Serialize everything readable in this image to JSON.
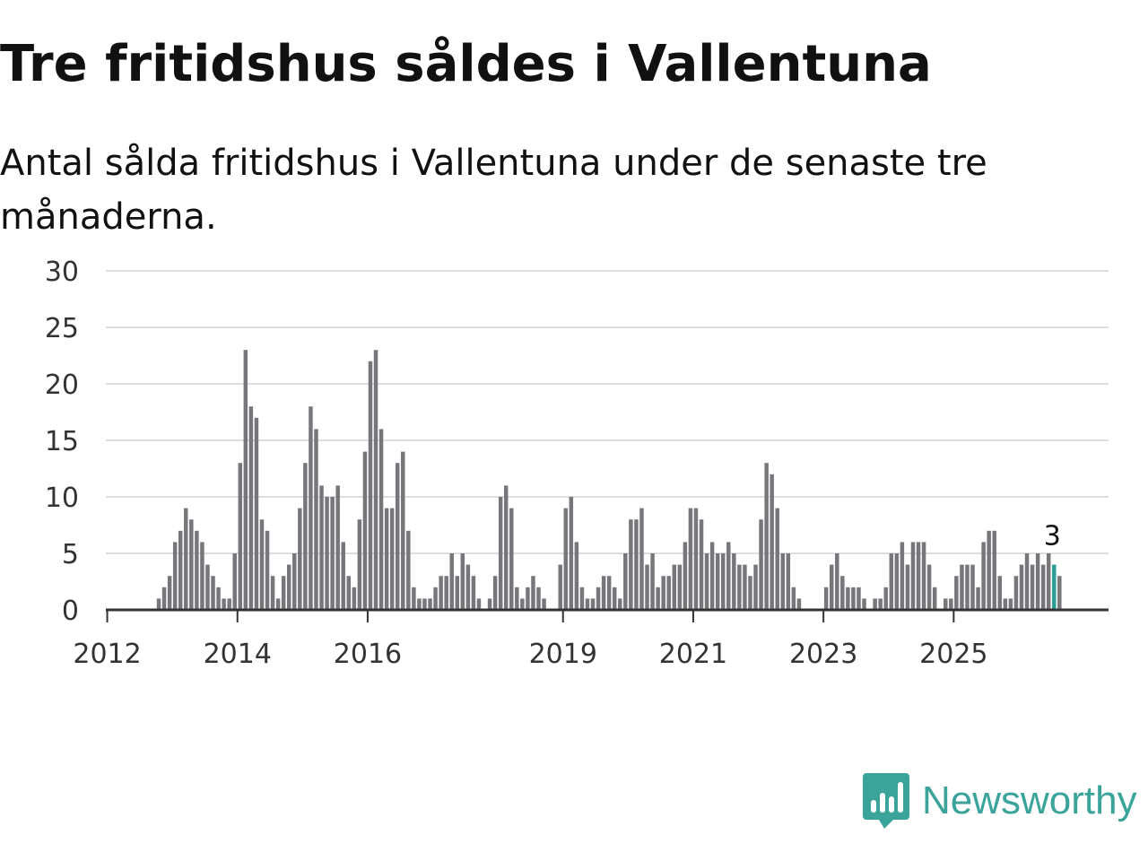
{
  "title": "Tre fritidshus såldes i Vallentuna",
  "subtitle": "Antal sålda fritidshus i Vallentuna under de senaste tre månaderna.",
  "brand": {
    "name": "Newsworthy",
    "color": "#3aa39a",
    "icon": "newsworthy-logo-icon"
  },
  "colors": {
    "bar": "#77767b",
    "highlight": "#2a9d95",
    "grid": "#dddddd",
    "axis": "#333333"
  },
  "chart_data": {
    "type": "bar",
    "title": "Tre fritidshus såldes i Vallentuna",
    "xlabel": "",
    "ylabel": "",
    "ylim": [
      0,
      30
    ],
    "yticks": [
      0,
      5,
      10,
      15,
      20,
      25,
      30
    ],
    "xtick_labels": [
      {
        "label": "2012",
        "index": 0
      },
      {
        "label": "2014",
        "index": 24
      },
      {
        "label": "2016",
        "index": 48
      },
      {
        "label": "2019",
        "index": 84
      },
      {
        "label": "2021",
        "index": 108
      },
      {
        "label": "2023",
        "index": 132
      },
      {
        "label": "2025",
        "index": 156
      }
    ],
    "grid": true,
    "legend": "none",
    "bar_width_months": 1,
    "start_offset_months": -9,
    "first_month": "2011-04",
    "last_month": "2025-10",
    "values": [
      0,
      0,
      0,
      0,
      0,
      0,
      0,
      0,
      0,
      1,
      2,
      3,
      6,
      7,
      9,
      8,
      7,
      6,
      4,
      3,
      2,
      1,
      1,
      5,
      13,
      23,
      18,
      17,
      8,
      7,
      3,
      1,
      3,
      4,
      5,
      9,
      13,
      18,
      16,
      11,
      10,
      10,
      11,
      6,
      3,
      2,
      8,
      14,
      22,
      23,
      16,
      9,
      9,
      13,
      14,
      7,
      2,
      1,
      1,
      1,
      2,
      3,
      3,
      5,
      3,
      5,
      4,
      3,
      1,
      0,
      1,
      3,
      10,
      11,
      9,
      2,
      1,
      2,
      3,
      2,
      1,
      0,
      0,
      4,
      9,
      10,
      6,
      2,
      1,
      1,
      2,
      3,
      3,
      2,
      1,
      5,
      8,
      8,
      9,
      4,
      5,
      2,
      3,
      3,
      4,
      4,
      6,
      9,
      9,
      8,
      5,
      6,
      5,
      5,
      6,
      5,
      4,
      4,
      3,
      4,
      8,
      13,
      12,
      9,
      5,
      5,
      2,
      1,
      0,
      0,
      0,
      0,
      2,
      4,
      5,
      3,
      2,
      2,
      2,
      1,
      0,
      1,
      1,
      2,
      5,
      5,
      6,
      4,
      6,
      6,
      6,
      4,
      2,
      0,
      1,
      1,
      3,
      4,
      4,
      4,
      2,
      6,
      7,
      7,
      3,
      1,
      1,
      3,
      4,
      5,
      4,
      5,
      4,
      5,
      4,
      3
    ],
    "highlight_index": 174,
    "last_value_label": "3"
  }
}
